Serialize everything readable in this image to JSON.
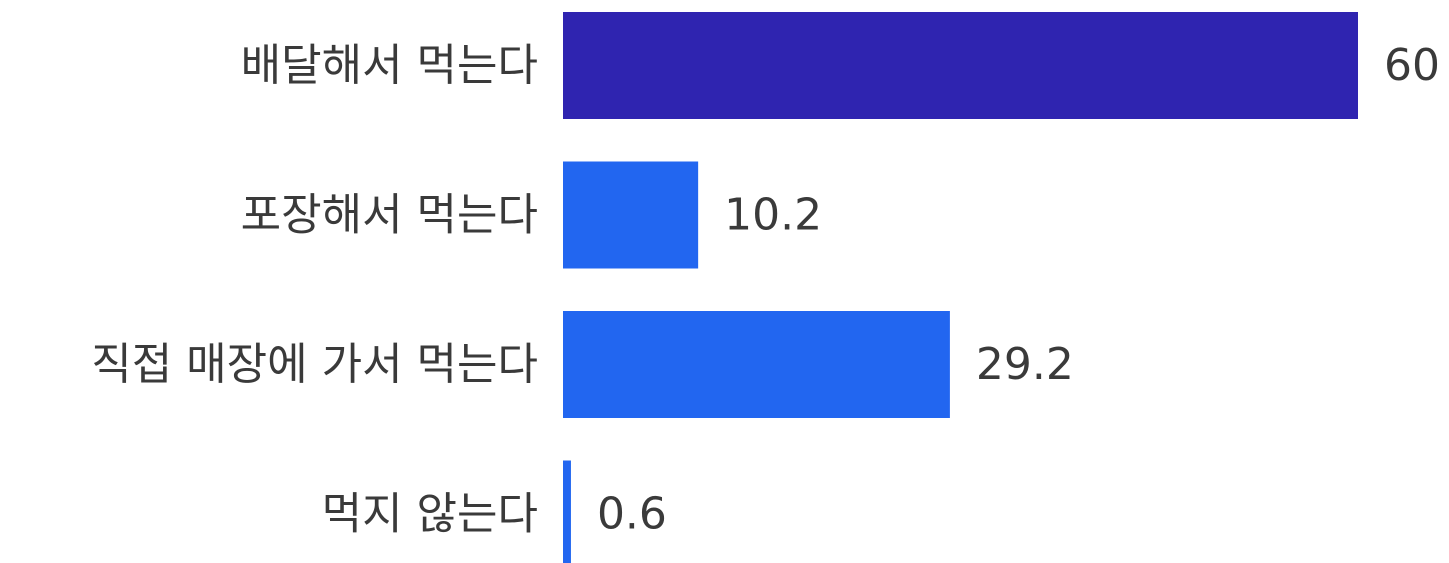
{
  "chart_data": {
    "type": "bar",
    "orientation": "horizontal",
    "categories": [
      "배달해서 먹는다",
      "포장해서 먹는다",
      "직접 매장에 가서 먹는다",
      "먹지 않는다"
    ],
    "values": [
      60,
      10.2,
      29.2,
      0.6
    ],
    "value_labels": [
      "60",
      "10.2",
      "29.2",
      "0.6"
    ],
    "bar_colors": [
      "#2f24b0",
      "#2266f0",
      "#2266f0",
      "#2266f0"
    ],
    "title": "",
    "xlabel": "",
    "ylabel": "",
    "xlim": [
      0,
      60
    ],
    "grid": false,
    "legend": "none"
  }
}
